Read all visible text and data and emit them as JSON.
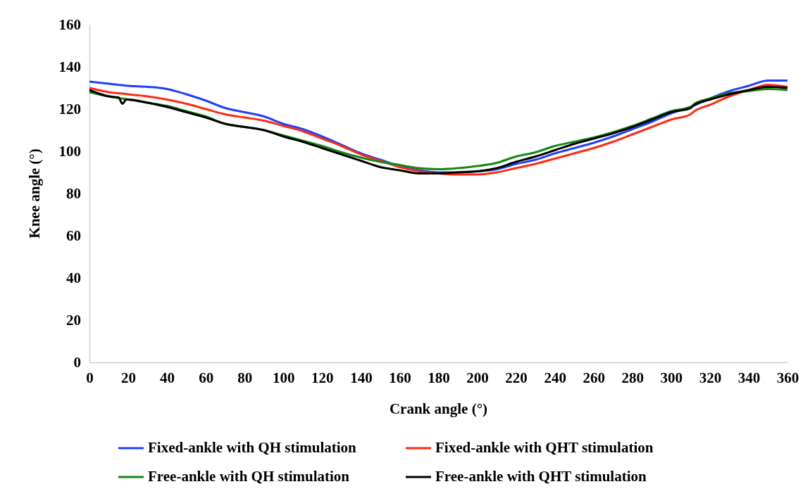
{
  "chart_data": {
    "type": "line",
    "xlabel": "Crank angle (°)",
    "ylabel": "Knee angle (°)",
    "xlim": [
      0,
      360
    ],
    "xticks": [
      0,
      20,
      40,
      60,
      80,
      100,
      120,
      140,
      160,
      180,
      200,
      220,
      240,
      260,
      280,
      300,
      320,
      340,
      360
    ],
    "ylim": [
      0,
      160
    ],
    "yticks": [
      0,
      20,
      40,
      60,
      80,
      100,
      120,
      140,
      160
    ],
    "grid": false,
    "legend": "bottom",
    "marker": "none",
    "line_style": "solid",
    "series": [
      {
        "name": "Fixed-ankle with QH stimulation",
        "color": "#1f3fff",
        "x": [
          0,
          10,
          20,
          30,
          40,
          50,
          60,
          70,
          80,
          90,
          100,
          110,
          120,
          130,
          140,
          150,
          160,
          170,
          180,
          190,
          200,
          210,
          220,
          230,
          240,
          250,
          260,
          270,
          280,
          290,
          300,
          310,
          320,
          330,
          340,
          350,
          360
        ],
        "values": [
          133,
          132,
          131,
          130.5,
          129.5,
          127,
          124,
          120.5,
          118.5,
          116.5,
          113,
          110.5,
          107,
          103,
          99,
          96,
          93,
          91,
          90,
          90,
          90.5,
          91.5,
          94,
          96,
          99,
          101.5,
          104,
          107,
          110.5,
          114,
          118,
          121,
          125,
          128.5,
          131,
          133.5,
          133.5
        ]
      },
      {
        "name": "Fixed-ankle with QHT stimulation",
        "color": "#ff2a12",
        "x": [
          0,
          10,
          20,
          30,
          40,
          50,
          60,
          70,
          80,
          90,
          100,
          110,
          120,
          130,
          140,
          150,
          160,
          170,
          180,
          190,
          200,
          210,
          220,
          230,
          240,
          250,
          260,
          270,
          280,
          290,
          300,
          310,
          312,
          320,
          330,
          340,
          350,
          360
        ],
        "values": [
          130,
          128,
          127,
          126,
          124.5,
          122.5,
          120,
          117.5,
          116,
          114.5,
          112,
          109.5,
          106,
          102.5,
          98.5,
          95.5,
          92.5,
          90.5,
          89.5,
          89,
          89,
          90,
          92,
          94,
          96.5,
          99,
          101.5,
          104.5,
          108,
          111.5,
          115,
          117.5,
          119,
          122,
          126,
          129,
          131.5,
          130.5
        ]
      },
      {
        "name": "Free-ankle with QH stimulation",
        "color": "#138a13",
        "x": [
          0,
          10,
          20,
          30,
          40,
          50,
          60,
          70,
          80,
          90,
          100,
          110,
          120,
          130,
          140,
          150,
          160,
          170,
          180,
          190,
          200,
          210,
          220,
          230,
          240,
          250,
          260,
          270,
          280,
          290,
          300,
          310,
          312,
          320,
          330,
          340,
          350,
          360
        ],
        "values": [
          128,
          126,
          124.5,
          123,
          121.5,
          119,
          116.5,
          113,
          111.5,
          110,
          107.5,
          105,
          102.5,
          99.5,
          97,
          95,
          93.5,
          92,
          91.5,
          92,
          93,
          94.5,
          97.5,
          99.5,
          102.5,
          104.5,
          106.5,
          109,
          112,
          115.5,
          119,
          121,
          122.5,
          125,
          127.5,
          128.5,
          129.5,
          129
        ]
      },
      {
        "name": "Free-ankle with QHT stimulation",
        "color": "#000000",
        "x": [
          0,
          10,
          15,
          17,
          19,
          20,
          30,
          40,
          50,
          60,
          70,
          80,
          90,
          100,
          110,
          120,
          130,
          140,
          150,
          160,
          170,
          180,
          190,
          200,
          210,
          220,
          230,
          240,
          250,
          260,
          270,
          280,
          290,
          300,
          310,
          312,
          320,
          330,
          340,
          350,
          360
        ],
        "values": [
          129,
          126,
          125.5,
          122.5,
          124.5,
          124.5,
          123,
          121,
          118.5,
          116,
          113,
          111.5,
          110,
          107,
          104.5,
          101.5,
          98.5,
          95.5,
          92.5,
          91,
          89.5,
          89.5,
          90,
          90.5,
          92,
          95,
          97.5,
          100.5,
          103.5,
          106,
          108.5,
          111.5,
          115,
          118.5,
          120.5,
          122,
          124.5,
          127,
          129,
          130.5,
          130
        ]
      }
    ]
  }
}
